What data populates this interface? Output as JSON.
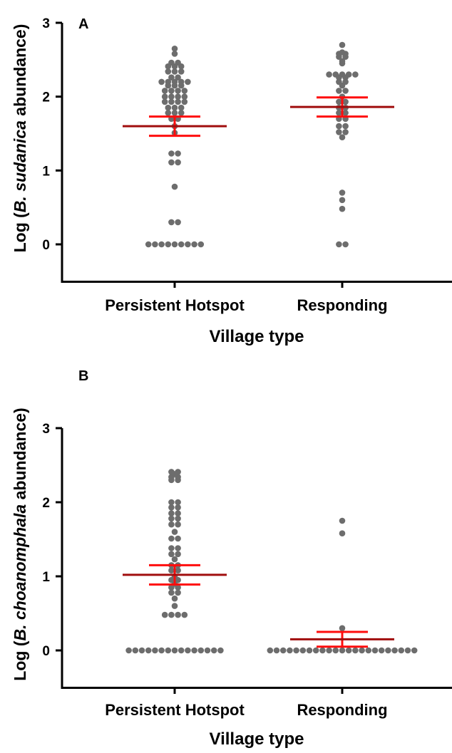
{
  "colors": {
    "points": "#6d6d6d",
    "mean_line": "#a00d0d",
    "sem_bars": "#ff0d0d",
    "axis": "#000000"
  },
  "chart_data": [
    {
      "type": "scatter",
      "panel_label": "A",
      "title": "",
      "xlabel": "Village type",
      "ylabel_prefix": "Log (",
      "ylabel_italic": "B. sudanica",
      "ylabel_suffix": " abundance)",
      "ylim": [
        -0.5,
        3
      ],
      "yticks": [
        0,
        1,
        2,
        3
      ],
      "grid": false,
      "legend": "none",
      "categories": [
        "Persistent Hotspot",
        "Responding"
      ],
      "series": [
        {
          "category": "Persistent Hotspot",
          "values": [
            0,
            0,
            0,
            0,
            0,
            0,
            0,
            0,
            0,
            0.3,
            0.3,
            0.78,
            1.11,
            1.11,
            1.23,
            1.23,
            1.51,
            1.6,
            1.7,
            1.7,
            1.78,
            1.78,
            1.78,
            1.85,
            1.85,
            1.85,
            1.93,
            1.93,
            1.93,
            1.93,
            2.0,
            2.0,
            2.0,
            2.0,
            2.08,
            2.08,
            2.08,
            2.08,
            2.15,
            2.15,
            2.15,
            2.2,
            2.2,
            2.2,
            2.2,
            2.2,
            2.26,
            2.26,
            2.34,
            2.34,
            2.34,
            2.41,
            2.41,
            2.41,
            2.46,
            2.46,
            2.58,
            2.65
          ],
          "mean": 1.6,
          "sem": 0.13
        },
        {
          "category": "Responding",
          "values": [
            0,
            0,
            0.48,
            0.6,
            0.7,
            1.45,
            1.52,
            1.52,
            1.6,
            1.6,
            1.7,
            1.7,
            1.78,
            1.78,
            1.85,
            1.85,
            1.93,
            1.93,
            2.0,
            2.08,
            2.08,
            2.15,
            2.2,
            2.2,
            2.26,
            2.26,
            2.3,
            2.3,
            2.3,
            2.3,
            2.3,
            2.45,
            2.48,
            2.54,
            2.54,
            2.58,
            2.58,
            2.6,
            2.7
          ],
          "mean": 1.86,
          "sem": 0.13
        }
      ]
    },
    {
      "type": "scatter",
      "panel_label": "B",
      "title": "",
      "xlabel": "Village type",
      "ylabel_prefix": "Log (",
      "ylabel_italic": "B. choanomphala",
      "ylabel_suffix": " abundance)",
      "ylim": [
        -0.5,
        3
      ],
      "yticks": [
        0,
        1,
        2,
        3
      ],
      "grid": false,
      "legend": "none",
      "categories": [
        "Persistent Hotspot",
        "Responding"
      ],
      "series": [
        {
          "category": "Persistent Hotspot",
          "values": [
            0,
            0,
            0,
            0,
            0,
            0,
            0,
            0,
            0,
            0,
            0,
            0,
            0,
            0,
            0,
            0.48,
            0.48,
            0.48,
            0.48,
            0.6,
            0.7,
            0.78,
            0.78,
            0.85,
            0.85,
            0.9,
            0.95,
            0.95,
            1.0,
            1.08,
            1.08,
            1.15,
            1.15,
            1.23,
            1.3,
            1.3,
            1.38,
            1.38,
            1.51,
            1.51,
            1.6,
            1.7,
            1.7,
            1.78,
            1.78,
            1.85,
            1.85,
            1.93,
            1.93,
            2.0,
            2.0,
            2.3,
            2.3,
            2.34,
            2.34,
            2.38,
            2.41,
            2.41
          ],
          "mean": 1.02,
          "sem": 0.13
        },
        {
          "category": "Responding",
          "values": [
            0,
            0,
            0,
            0,
            0,
            0,
            0,
            0,
            0,
            0,
            0,
            0,
            0,
            0,
            0,
            0,
            0,
            0,
            0,
            0,
            0,
            0,
            0,
            0.3,
            1.58,
            1.75
          ],
          "mean": 0.15,
          "sem": 0.1
        }
      ]
    }
  ]
}
